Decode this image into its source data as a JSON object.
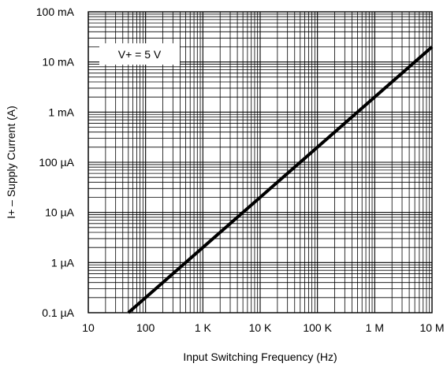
{
  "chart_data": {
    "type": "line",
    "xlabel": "Input Switching Frequency (Hz)",
    "ylabel": "I+ – Supply Current (A)",
    "x_scale": "log",
    "y_scale": "log",
    "xlim": [
      10,
      10000000
    ],
    "ylim": [
      1e-07,
      0.1
    ],
    "x_ticks": [
      10,
      100,
      1000,
      10000,
      100000,
      1000000,
      10000000
    ],
    "x_tick_labels": [
      "10",
      "100",
      "1 K",
      "10 K",
      "100 K",
      "1 M",
      "10 M"
    ],
    "y_ticks": [
      1e-07,
      1e-06,
      1e-05,
      0.0001,
      0.001,
      0.01,
      0.1
    ],
    "y_tick_labels": [
      "0.1 µA",
      "1 µA",
      "10 µA",
      "100 µA",
      "1 mA",
      "10 mA",
      "100 mA"
    ],
    "grid": true,
    "series": [
      {
        "x": [
          50,
          10000000
        ],
        "y": [
          1e-07,
          0.02
        ],
        "color": "#000000"
      }
    ],
    "annotations": [
      {
        "text": "V+ = 5 V",
        "placement": "top-left"
      }
    ]
  }
}
